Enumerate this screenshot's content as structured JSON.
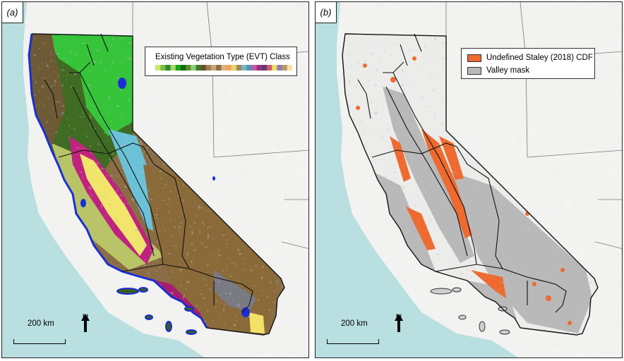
{
  "panels": [
    {
      "label": "(a)",
      "legend": {
        "title": "Existing Vegetation Type (EVT) Class",
        "colorbar": [
          "#c9e86f",
          "#7bc043",
          "#2e8b32",
          "#a6d86b",
          "#19a319",
          "#0b6e0b",
          "#5e8c2a",
          "#8bd17a",
          "#3f7b2f",
          "#6b4e2e",
          "#a67c52",
          "#c8a67a",
          "#8a6e4b",
          "#d9b27c",
          "#f0a35e",
          "#e8d36c",
          "#9c8a58",
          "#7fb3c9",
          "#4f93b3",
          "#c25aa0",
          "#9b2f80",
          "#5e3a79",
          "#d15b6b",
          "#e5e25a",
          "#8e7cc3",
          "#b89c6a",
          "#f6e3a1"
        ]
      },
      "scale_label": "200 km",
      "north_label": "N"
    },
    {
      "label": "(b)",
      "legend": {
        "items": [
          {
            "label": "Undefined Staley (2018) CDF",
            "color": "#ee6a2f"
          },
          {
            "label": "Valley mask",
            "color": "#b9b9b9"
          }
        ]
      },
      "scale_label": "200 km",
      "north_label": "N"
    }
  ]
}
